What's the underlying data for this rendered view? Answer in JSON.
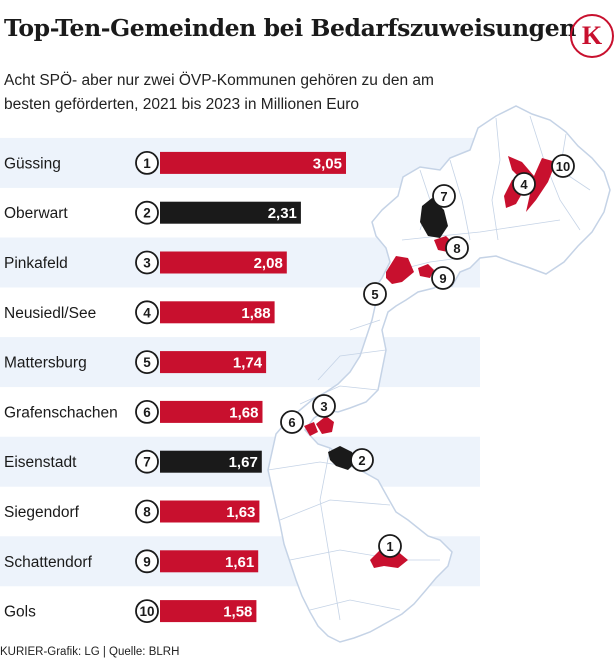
{
  "header": {
    "title": "Top-Ten-Gemeinden bei Bedarfszuweisungen",
    "logo": "K",
    "subtitle": "Acht SPÖ- aber nur zwei ÖVP-Kommunen gehören zu den am besten geförderten, 2021 bis 2023 in Millionen Euro"
  },
  "colors": {
    "spo": "#c8102e",
    "ovp": "#1a1a1a",
    "band": "#edf3fb",
    "map_fill": "#ffffff",
    "map_line": "#c5d3e6"
  },
  "chart_data": {
    "type": "bar",
    "orientation": "horizontal",
    "unit": "Millionen Euro",
    "categories": [
      "Güssing",
      "Oberwart",
      "Pinkafeld",
      "Neusiedl/See",
      "Mattersburg",
      "Grafenschachen",
      "Eisenstadt",
      "Siegendorf",
      "Schattendorf",
      "Gols"
    ],
    "ranks": [
      1,
      2,
      3,
      4,
      5,
      6,
      7,
      8,
      9,
      10
    ],
    "values": [
      3.05,
      2.31,
      2.08,
      1.88,
      1.74,
      1.68,
      1.67,
      1.63,
      1.61,
      1.58
    ],
    "value_labels": [
      "3,05",
      "2,31",
      "2,08",
      "1,88",
      "1,74",
      "1,68",
      "1,67",
      "1,63",
      "1,61",
      "1,58"
    ],
    "party_color": [
      "spo",
      "ovp",
      "spo",
      "spo",
      "spo",
      "spo",
      "ovp",
      "spo",
      "spo",
      "spo"
    ],
    "xlim": [
      0,
      3.05
    ],
    "grid": false,
    "legend": "none"
  },
  "footer": "KURIER-Grafik: LG | Quelle: BLRH"
}
